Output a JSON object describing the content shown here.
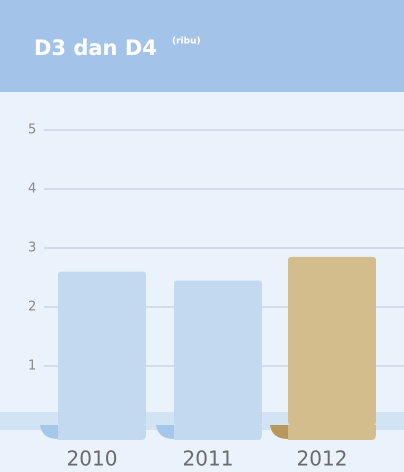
{
  "chart_data": {
    "type": "bar",
    "title": "D3 dan D4",
    "subtitle": "(ribu)",
    "categories": [
      "2010",
      "2011",
      "2012"
    ],
    "values": [
      2.6,
      2.45,
      2.85
    ],
    "colors": [
      "#c3d9f0",
      "#c3d9f0",
      "#d3bd8c"
    ],
    "ylim": [
      0,
      5
    ],
    "yticks": [
      1,
      2,
      3,
      4,
      5
    ],
    "grid": true
  }
}
